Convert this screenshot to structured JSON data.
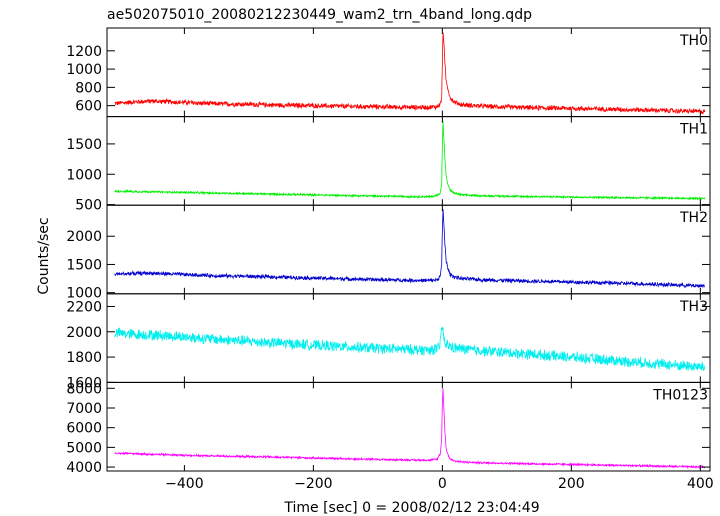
{
  "title": "ae502075010_20080212230449_wam2_trn_4band_long.qdp",
  "ylabel": "Counts/sec",
  "xlabel": "Time [sec] 0 = 2008/02/12 23:04:49",
  "chart_data": {
    "type": "line",
    "title": "ae502075010_20080212230449_wam2_trn_4band_long.qdp",
    "xlabel": "Time [sec] 0 = 2008/02/12 23:04:49",
    "ylabel": "Counts/sec",
    "xlim": [
      -520,
      415
    ],
    "xticks": [
      -400,
      -200,
      0,
      200,
      400
    ],
    "x_tick_labels": [
      "−400",
      "−200",
      "0",
      "200",
      "400"
    ],
    "grid": false,
    "panels": [
      {
        "name": "TH0",
        "color": "#ff0000",
        "ylim": [
          480,
          1450
        ],
        "yticks": [
          600,
          800,
          1000,
          1200
        ],
        "ytick_labels": [
          "600",
          "800",
          "1000",
          "1200"
        ],
        "x": [
          -505,
          -480,
          -450,
          -400,
          -350,
          -300,
          -250,
          -200,
          -150,
          -100,
          -50,
          -20,
          -8,
          -3,
          -1,
          0,
          1,
          2,
          4,
          6,
          9,
          12,
          18,
          30,
          60,
          120,
          200,
          300,
          405
        ],
        "y": [
          625,
          640,
          650,
          635,
          620,
          615,
          605,
          600,
          592,
          588,
          582,
          582,
          590,
          620,
          700,
          1050,
          1420,
          1350,
          1050,
          860,
          780,
          690,
          640,
          610,
          595,
          580,
          570,
          555,
          535
        ],
        "noise": 30
      },
      {
        "name": "TH1",
        "color": "#00ee00",
        "ylim": [
          490,
          1950
        ],
        "yticks": [
          500,
          1000,
          1500
        ],
        "ytick_labels": [
          "500",
          "1000",
          "1500"
        ],
        "x": [
          -505,
          -480,
          -450,
          -400,
          -350,
          -300,
          -250,
          -200,
          -150,
          -100,
          -50,
          -20,
          -8,
          -3,
          -1,
          0,
          1,
          2,
          4,
          6,
          9,
          12,
          18,
          30,
          60,
          120,
          200,
          300,
          405
        ],
        "y": [
          720,
          715,
          710,
          700,
          690,
          680,
          670,
          660,
          650,
          640,
          632,
          630,
          650,
          700,
          850,
          1500,
          1880,
          1650,
          1250,
          950,
          820,
          740,
          690,
          660,
          645,
          635,
          625,
          612,
          600
        ],
        "noise": 18
      },
      {
        "name": "TH2",
        "color": "#0000cc",
        "ylim": [
          980,
          2550
        ],
        "yticks": [
          1000,
          1500,
          2000
        ],
        "ytick_labels": [
          "1000",
          "1500",
          "2000"
        ],
        "x": [
          -505,
          -480,
          -450,
          -400,
          -350,
          -300,
          -250,
          -200,
          -150,
          -100,
          -50,
          -20,
          -8,
          -3,
          -1,
          0,
          1,
          2,
          4,
          6,
          9,
          12,
          18,
          30,
          60,
          120,
          200,
          300,
          405
        ],
        "y": [
          1330,
          1340,
          1345,
          1320,
          1300,
          1290,
          1275,
          1260,
          1245,
          1230,
          1220,
          1215,
          1230,
          1300,
          1500,
          2100,
          2500,
          2300,
          1850,
          1550,
          1420,
          1330,
          1280,
          1250,
          1230,
          1210,
          1190,
          1160,
          1120
        ],
        "noise": 38
      },
      {
        "name": "TH3",
        "color": "#00eeee",
        "ylim": [
          1600,
          2300
        ],
        "yticks": [
          1600,
          1800,
          2000,
          2200
        ],
        "ytick_labels": [
          "1600",
          "1800",
          "2000",
          "2200"
        ],
        "x": [
          -505,
          -480,
          -450,
          -400,
          -350,
          -300,
          -250,
          -200,
          -150,
          -100,
          -50,
          -20,
          -5,
          0,
          2,
          5,
          20,
          60,
          120,
          200,
          300,
          405
        ],
        "y": [
          1990,
          1980,
          1975,
          1960,
          1940,
          1925,
          1910,
          1895,
          1880,
          1870,
          1860,
          1855,
          1870,
          2050,
          1960,
          1900,
          1870,
          1850,
          1830,
          1800,
          1760,
          1720
        ],
        "noise": 48
      },
      {
        "name": "TH0123",
        "color": "#ff00ff",
        "ylim": [
          3800,
          8300
        ],
        "yticks": [
          4000,
          5000,
          6000,
          7000,
          8000
        ],
        "ytick_labels": [
          "4000",
          "5000",
          "6000",
          "7000",
          "8000"
        ],
        "x": [
          -505,
          -480,
          -450,
          -400,
          -350,
          -300,
          -250,
          -200,
          -150,
          -100,
          -50,
          -20,
          -8,
          -3,
          -1,
          0,
          1,
          2,
          4,
          6,
          9,
          12,
          18,
          30,
          60,
          120,
          200,
          300,
          405
        ],
        "y": [
          4700,
          4680,
          4650,
          4600,
          4560,
          4530,
          4500,
          4460,
          4420,
          4390,
          4360,
          4350,
          4400,
          4700,
          5500,
          7300,
          8000,
          7200,
          5800,
          4900,
          4600,
          4420,
          4320,
          4260,
          4220,
          4180,
          4130,
          4070,
          4000
        ],
        "noise": 55
      }
    ]
  }
}
